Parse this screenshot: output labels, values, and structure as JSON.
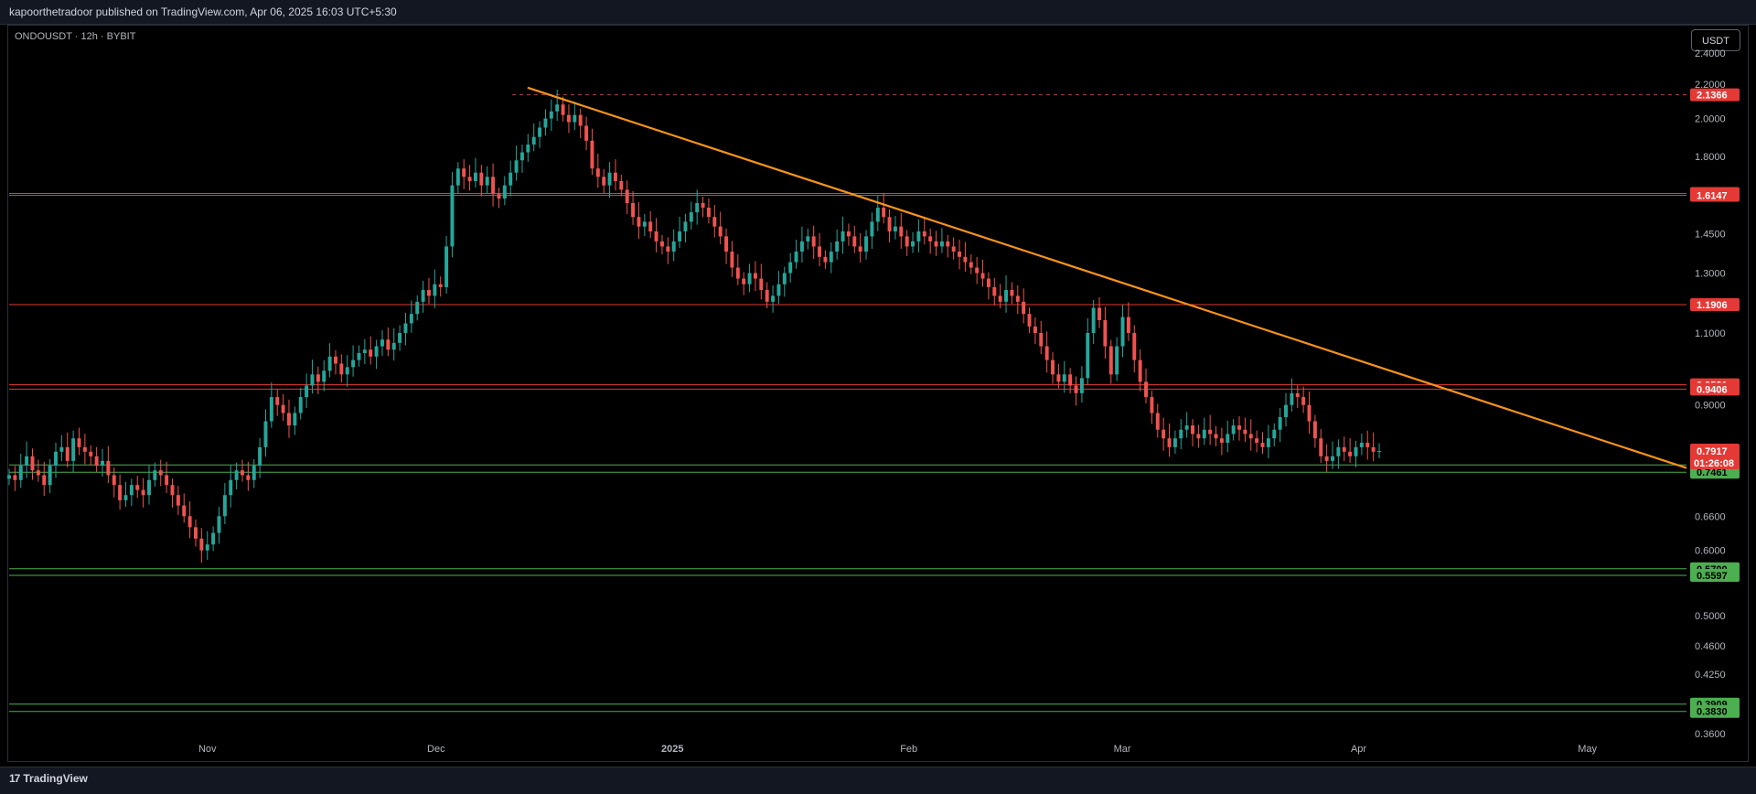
{
  "header": {
    "publish_text": "kapoorthetradoor published on TradingView.com, Apr 06, 2025 16:03 UTC+5:30"
  },
  "symbol_label": "ONDOUSDT · 12h · BYBIT",
  "currency_button": "USDT",
  "footer": {
    "logo_text": "TradingView"
  },
  "colors": {
    "up": "#26a69a",
    "down": "#ef5350",
    "trendline": "#f7931a",
    "resistance": "#e53935",
    "support": "#4caf50"
  },
  "chart_data": {
    "type": "candlestick",
    "symbol": "ONDOUSDT",
    "interval": "12h",
    "exchange": "BYBIT",
    "ylim": [
      0.36,
      2.45
    ],
    "y_scale": "log",
    "y_ticks": [
      "2.4000",
      "2.2000",
      "2.0000",
      "1.8000",
      "1.4500",
      "1.3000",
      "1.1000",
      "0.9500",
      "0.9000",
      "0.6600",
      "0.6000",
      "0.5000",
      "0.4600",
      "0.4250",
      "0.3600"
    ],
    "x_ticks": [
      "Nov",
      "Dec",
      "2025",
      "Feb",
      "Mar",
      "Apr",
      "May"
    ],
    "price_lines": [
      {
        "value": 2.1366,
        "label": "2.1366",
        "kind": "resistance",
        "style": "dashed"
      },
      {
        "value": 1.6231,
        "label": "1.6231",
        "kind": "resistance"
      },
      {
        "value": 1.6147,
        "label": "1.6147",
        "kind": "resistance"
      },
      {
        "value": 1.1906,
        "label": "1.1906",
        "kind": "resistance"
      },
      {
        "value": 0.9521,
        "label": "0.9521",
        "kind": "resistance"
      },
      {
        "value": 0.9406,
        "label": "0.9406",
        "kind": "resistance"
      },
      {
        "value": 0.7614,
        "label": "0.7614",
        "kind": "support"
      },
      {
        "value": 0.7461,
        "label": "0.7461",
        "kind": "support"
      },
      {
        "value": 0.57,
        "label": "0.5700",
        "kind": "support"
      },
      {
        "value": 0.5597,
        "label": "0.5597",
        "kind": "support"
      },
      {
        "value": 0.3909,
        "label": "0.3909",
        "kind": "support"
      },
      {
        "value": 0.383,
        "label": "0.3830",
        "kind": "support"
      }
    ],
    "current_price": {
      "value": 0.7917,
      "label": "0.7917",
      "countdown": "01:26:08"
    },
    "trendline": {
      "start": {
        "date": "2024-12-13",
        "price": 2.18
      },
      "end": {
        "date": "2025-05-14",
        "price": 0.755
      }
    },
    "closes": [
      0.74,
      0.73,
      0.76,
      0.78,
      0.75,
      0.74,
      0.72,
      0.76,
      0.79,
      0.8,
      0.77,
      0.82,
      0.8,
      0.79,
      0.78,
      0.76,
      0.77,
      0.74,
      0.72,
      0.69,
      0.7,
      0.72,
      0.71,
      0.7,
      0.73,
      0.75,
      0.74,
      0.72,
      0.7,
      0.68,
      0.66,
      0.64,
      0.62,
      0.6,
      0.61,
      0.63,
      0.66,
      0.7,
      0.73,
      0.75,
      0.74,
      0.73,
      0.76,
      0.8,
      0.86,
      0.92,
      0.9,
      0.88,
      0.85,
      0.88,
      0.92,
      0.95,
      0.98,
      0.96,
      0.99,
      1.03,
      1.01,
      0.98,
      1.0,
      1.02,
      1.04,
      1.05,
      1.03,
      1.06,
      1.08,
      1.05,
      1.07,
      1.1,
      1.13,
      1.16,
      1.2,
      1.24,
      1.22,
      1.26,
      1.25,
      1.4,
      1.66,
      1.74,
      1.7,
      1.68,
      1.72,
      1.66,
      1.7,
      1.62,
      1.6,
      1.66,
      1.72,
      1.78,
      1.82,
      1.86,
      1.9,
      1.95,
      2.0,
      2.04,
      2.08,
      2.02,
      1.98,
      2.02,
      1.96,
      1.88,
      1.74,
      1.7,
      1.66,
      1.72,
      1.68,
      1.64,
      1.58,
      1.52,
      1.48,
      1.5,
      1.46,
      1.42,
      1.4,
      1.38,
      1.42,
      1.46,
      1.5,
      1.54,
      1.58,
      1.56,
      1.52,
      1.48,
      1.44,
      1.38,
      1.32,
      1.28,
      1.26,
      1.3,
      1.28,
      1.24,
      1.2,
      1.22,
      1.26,
      1.3,
      1.34,
      1.38,
      1.42,
      1.44,
      1.4,
      1.36,
      1.34,
      1.38,
      1.42,
      1.46,
      1.44,
      1.4,
      1.38,
      1.44,
      1.5,
      1.56,
      1.52,
      1.46,
      1.48,
      1.44,
      1.4,
      1.42,
      1.46,
      1.44,
      1.42,
      1.4,
      1.42,
      1.4,
      1.38,
      1.36,
      1.34,
      1.32,
      1.3,
      1.28,
      1.25,
      1.22,
      1.2,
      1.24,
      1.22,
      1.2,
      1.16,
      1.12,
      1.1,
      1.06,
      1.02,
      0.98,
      0.96,
      0.98,
      0.95,
      0.93,
      0.97,
      1.1,
      1.18,
      1.14,
      1.06,
      0.98,
      1.06,
      1.15,
      1.1,
      1.02,
      0.96,
      0.92,
      0.88,
      0.84,
      0.82,
      0.8,
      0.82,
      0.84,
      0.85,
      0.83,
      0.82,
      0.84,
      0.83,
      0.82,
      0.81,
      0.83,
      0.85,
      0.84,
      0.83,
      0.82,
      0.81,
      0.8,
      0.82,
      0.84,
      0.87,
      0.9,
      0.93,
      0.92,
      0.9,
      0.86,
      0.82,
      0.78,
      0.77,
      0.78,
      0.8,
      0.79,
      0.78,
      0.8,
      0.81,
      0.8,
      0.79,
      0.7917
    ]
  }
}
